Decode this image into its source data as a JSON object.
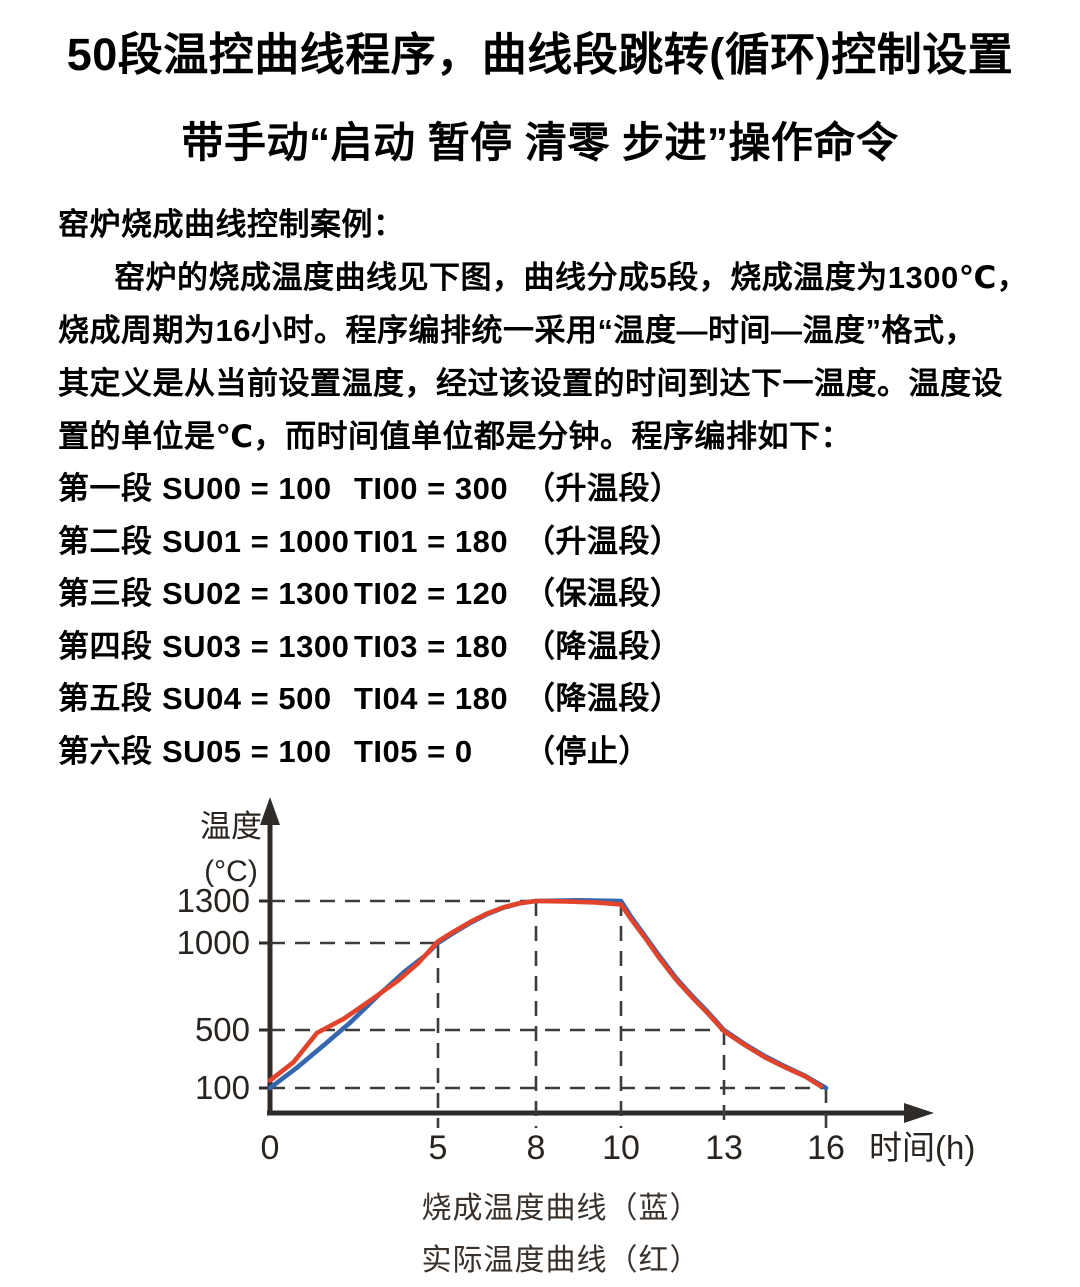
{
  "title": {
    "line1": "50段温控曲线程序，曲线段跳转(循环)控制设置",
    "line2": "带手动“启动 暂停 清零 步进”操作命令"
  },
  "intro": {
    "heading": "窑炉烧成曲线控制案例：",
    "lines": [
      "窑炉的烧成温度曲线见下图，曲线分成5段，烧成温度为1300℃，",
      "烧成周期为16小时。程序编排统一采用“温度—时间—温度”格式，",
      "其定义是从当前设置温度，经过该设置的时间到达下一温度。温度设",
      "置的单位是℃，而时间值单位都是分钟。程序编排如下："
    ]
  },
  "segments": [
    {
      "label": "第一段",
      "su": "SU00 = 100",
      "ti": "TI00 = 300",
      "note": "（升温段）"
    },
    {
      "label": "第二段",
      "su": "SU01 = 1000",
      "ti": "TI01 = 180",
      "note": "（升温段）"
    },
    {
      "label": "第三段",
      "su": "SU02 = 1300",
      "ti": "TI02 = 120",
      "note": "（保温段）"
    },
    {
      "label": "第四段",
      "su": "SU03 = 1300",
      "ti": "TI03 = 180",
      "note": "（降温段）"
    },
    {
      "label": "第五段",
      "su": "SU04 = 500",
      "ti": "TI04 = 180",
      "note": "（降温段）"
    },
    {
      "label": "第六段",
      "su": "SU05 = 100",
      "ti": "TI05 = 0",
      "note": "（停止）"
    }
  ],
  "chart_data": {
    "type": "line",
    "xlabel": "时间(h)",
    "ylabel_lines": [
      "温度",
      "(°C)"
    ],
    "x_ticks": [
      0,
      5,
      8,
      10,
      13,
      16
    ],
    "y_ticks": [
      1300,
      1000,
      500,
      100
    ],
    "xlim": [
      0,
      17
    ],
    "ylim": [
      0,
      1500
    ],
    "grid": "dashed-reference-lines",
    "legend_position": "below",
    "h_gridlines": [
      {
        "value": 1300,
        "to_x": 8
      },
      {
        "value": 1000,
        "to_x": 5
      },
      {
        "value": 500,
        "to_x": 13
      },
      {
        "value": 100,
        "to_x": 16
      }
    ],
    "v_gridlines": [
      {
        "x": 5,
        "to_value": 1000
      },
      {
        "x": 8,
        "to_value": 1300
      },
      {
        "x": 10,
        "to_value": 1300
      },
      {
        "x": 13,
        "to_value": 500
      },
      {
        "x": 16,
        "to_value": 100
      }
    ],
    "program_points": [
      [
        0,
        100
      ],
      [
        5,
        1000
      ],
      [
        8,
        1300
      ],
      [
        10,
        1300
      ],
      [
        13,
        500
      ],
      [
        16,
        100
      ]
    ],
    "series": [
      {
        "name": "烧成温度曲线（蓝）",
        "color_key": "blue",
        "points": [
          [
            0,
            100
          ],
          [
            0.8,
            240
          ],
          [
            1.6,
            395
          ],
          [
            2.4,
            545
          ],
          [
            3.2,
            695
          ],
          [
            4,
            835
          ],
          [
            4.6,
            925
          ],
          [
            5,
            1000
          ],
          [
            5.5,
            1075
          ],
          [
            6,
            1145
          ],
          [
            6.5,
            1205
          ],
          [
            7,
            1252
          ],
          [
            7.5,
            1283
          ],
          [
            8,
            1300
          ],
          [
            9,
            1305
          ],
          [
            10,
            1300
          ],
          [
            10.3,
            1185
          ],
          [
            10.7,
            1050
          ],
          [
            11.1,
            930
          ],
          [
            11.6,
            800
          ],
          [
            12.1,
            690
          ],
          [
            12.5,
            610
          ],
          [
            13,
            500
          ],
          [
            13.6,
            405
          ],
          [
            14.2,
            320
          ],
          [
            14.8,
            248
          ],
          [
            15.4,
            182
          ],
          [
            16,
            100
          ]
        ]
      },
      {
        "name": "实际温度曲线（红）",
        "color_key": "red",
        "points": [
          [
            0,
            152
          ],
          [
            0.7,
            278
          ],
          [
            1.4,
            480
          ],
          [
            2.2,
            565
          ],
          [
            3,
            672
          ],
          [
            3.8,
            782
          ],
          [
            4.4,
            882
          ],
          [
            5,
            1012
          ],
          [
            5.5,
            1084
          ],
          [
            6,
            1152
          ],
          [
            6.5,
            1210
          ],
          [
            7,
            1254
          ],
          [
            7.5,
            1285
          ],
          [
            8,
            1300
          ],
          [
            8.7,
            1297
          ],
          [
            9.4,
            1290
          ],
          [
            10,
            1276
          ],
          [
            10.3,
            1168
          ],
          [
            10.7,
            1038
          ],
          [
            11.1,
            918
          ],
          [
            11.6,
            790
          ],
          [
            12.1,
            682
          ],
          [
            12.5,
            602
          ],
          [
            13,
            492
          ],
          [
            13.6,
            398
          ],
          [
            14.2,
            312
          ],
          [
            14.8,
            242
          ],
          [
            15.4,
            178
          ],
          [
            15.85,
            112
          ]
        ]
      }
    ]
  },
  "legend": {
    "line1": "烧成温度曲线（蓝）",
    "line2": "实际温度曲线（红）"
  },
  "colors": {
    "blue": "#3566ae",
    "red": "#e2432b",
    "axis": "#2f2b29",
    "gridline": "#3c3c3c",
    "tick_text": "#29241f"
  }
}
